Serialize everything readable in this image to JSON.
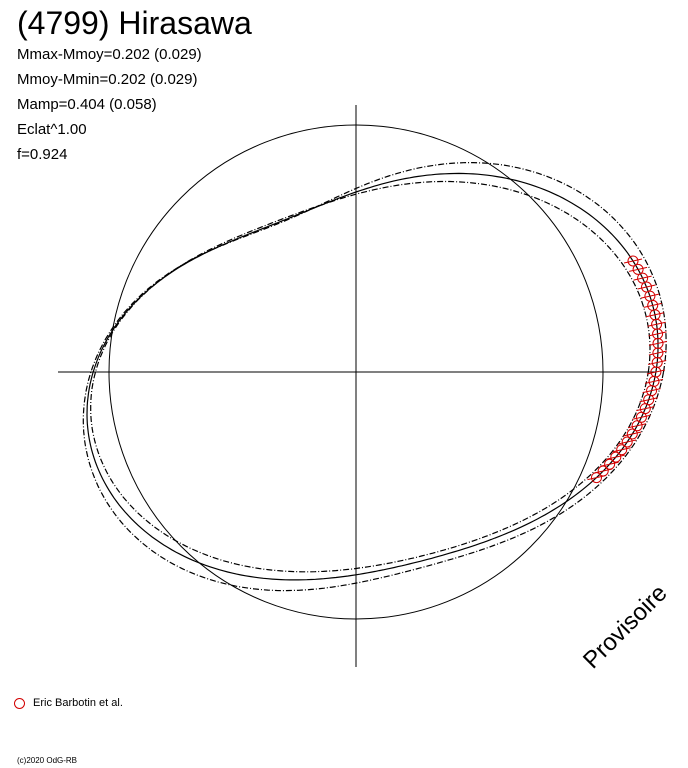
{
  "title": "(4799) Hirasawa",
  "stats": {
    "mmax_mmoy": "Mmax-Mmoy=0.202 (0.029)",
    "mmoy_mmin": "Mmoy-Mmin=0.202 (0.029)",
    "mamp": "Mamp=0.404 (0.058)",
    "eclat": "Eclat^1.00",
    "f": "f=0.924"
  },
  "legend": {
    "label": "Eric Barbotin et al.",
    "marker_color": "#d20000"
  },
  "watermark": "Provisoire",
  "copyright": "(c)2020 OdG-RB",
  "chart_data": {
    "type": "scatter",
    "subtype": "polar lightcurve",
    "axes": "crosshair through center",
    "reference_circle_radius": 1.0,
    "model_curve": {
      "style": "solid",
      "amplitude": 0.202,
      "description_points": []
    },
    "bound_curves": [
      {
        "style": "dash-dot",
        "amplitude": 0.231
      },
      {
        "style": "dash-dot",
        "amplitude": 0.173
      }
    ],
    "observations": {
      "marker": "circle",
      "color": "#d20000",
      "series_name": "Eric Barbotin et al.",
      "points_deg": [
        -24,
        -22,
        -20,
        -18,
        -16,
        -14,
        -12,
        -10,
        -8,
        -6,
        -4,
        -2,
        0,
        2,
        4,
        6,
        8,
        10,
        12,
        14,
        16,
        18,
        20,
        22,
        24,
        26
      ]
    }
  }
}
